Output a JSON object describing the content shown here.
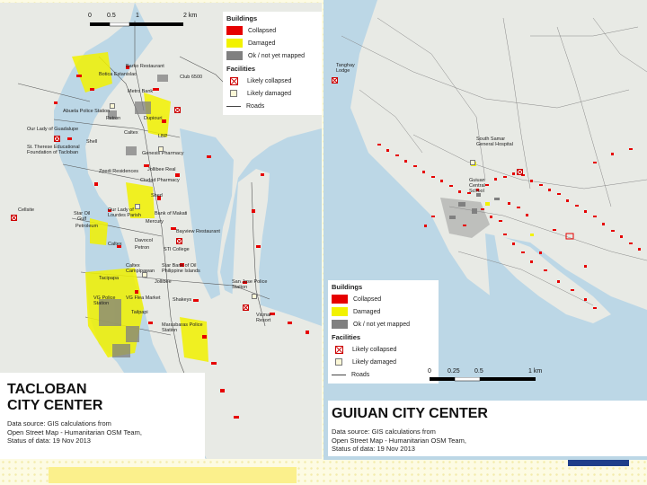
{
  "left_map": {
    "title_line1": "TACLOBAN",
    "title_line2": "CITY CENTER",
    "source_line1": "Data source: GIS calculations from",
    "source_line2": "Open Street Map - Humanitarian OSM Team,",
    "source_line3": "Status of data: 19 Nov 2013",
    "scale": {
      "t0": "0",
      "t1": "0.5",
      "t2": "1",
      "t3": "2 km"
    },
    "legend": {
      "buildings_heading": "Buildings",
      "collapsed": "Collapsed",
      "damaged": "Damaged",
      "ok": "Ok / not yet mapped",
      "facilities_heading": "Facilities",
      "likely_collapsed": "Likely collapsed",
      "likely_damaged": "Likely damaged",
      "roads": "Roads"
    },
    "places": [
      "Barko Restaurant",
      "Botica Estanislao",
      "Club 6500",
      "Metro Bank",
      "Abuela Police Station",
      "Petron",
      "Dupiouri",
      "Our Lady of Guadalupe",
      "Caltex",
      "Shell",
      "LBP",
      "St. Therese Educational Foundation of Tacloban",
      "Genesis Pharmacy",
      "Zpedi Residences",
      "Jollibee Real",
      "Ciudad Pharmacy",
      "Shed",
      "Cellsite",
      "Star Oil",
      "Gulf",
      "Petroleum",
      "Our Lady of Lourdes Parish",
      "Bank of Makati",
      "Mercury",
      "Bayview Restaurant",
      "Davocol",
      "Petron",
      "Caltex",
      "STI College",
      "Caltex Campipawan",
      "Star Bank of Oil Philippine Islands",
      "Tacipapa",
      "Jollibee",
      "San Jose Police Station",
      "VG Police Station",
      "VG Flea Market",
      "Tailpapi",
      "Shakeys",
      "Marasbaras Police Station",
      "Vicmar Resort"
    ]
  },
  "right_map": {
    "title": "GUIUAN CITY CENTER",
    "source_line1": "Data source: GIS calculations from",
    "source_line2": "Open Street Map - Humanitarian OSM Team,",
    "source_line3": "Status of data: 19 Nov 2013",
    "scale": {
      "t0": "0",
      "t1": "0.25",
      "t2": "0.5",
      "t3": "1 km"
    },
    "legend": {
      "buildings_heading": "Buildings",
      "collapsed": "Collapsed",
      "damaged": "Damaged",
      "ok": "Ok / not yet mapped",
      "facilities_heading": "Facilities",
      "likely_collapsed": "Likely collapsed",
      "likely_damaged": "Likely damaged",
      "roads": "Roads"
    },
    "places": [
      "Tanghay Lodge",
      "South Samar General Hospital",
      "Guiuan Central School"
    ]
  },
  "colors": {
    "collapsed": "#e60000",
    "damaged": "#f2f200",
    "ok": "#808080",
    "water": "#bcd7e6",
    "land": "#e8eae5"
  }
}
